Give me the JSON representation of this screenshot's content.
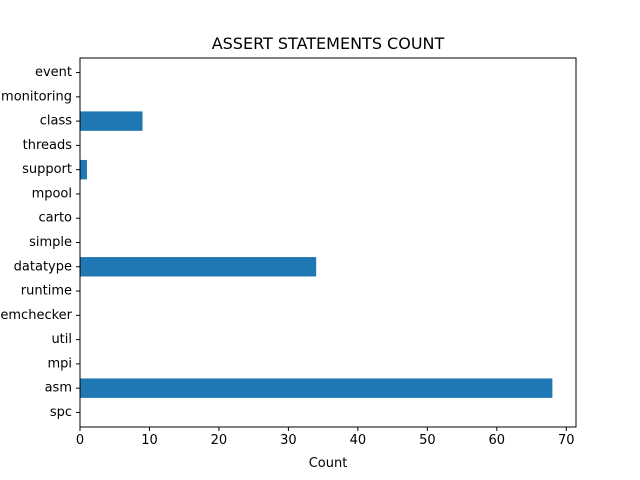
{
  "chart_data": {
    "type": "bar",
    "orientation": "horizontal",
    "title": "ASSERT STATEMENTS COUNT",
    "xlabel": "Count",
    "ylabel": "",
    "categories": [
      "spc",
      "asm",
      "mpi",
      "util",
      "memchecker",
      "runtime",
      "datatype",
      "simple",
      "carto",
      "mpool",
      "support",
      "threads",
      "class",
      "monitoring",
      "event"
    ],
    "values": [
      0,
      68,
      0,
      0,
      0,
      0,
      34,
      0,
      0,
      0,
      1,
      0,
      9,
      0,
      0
    ],
    "xlim": [
      0,
      71.4
    ],
    "xticks": [
      0,
      10,
      20,
      30,
      40,
      50,
      60,
      70
    ],
    "bar_color": "#1f77b4",
    "grid": false,
    "legend": "none"
  }
}
